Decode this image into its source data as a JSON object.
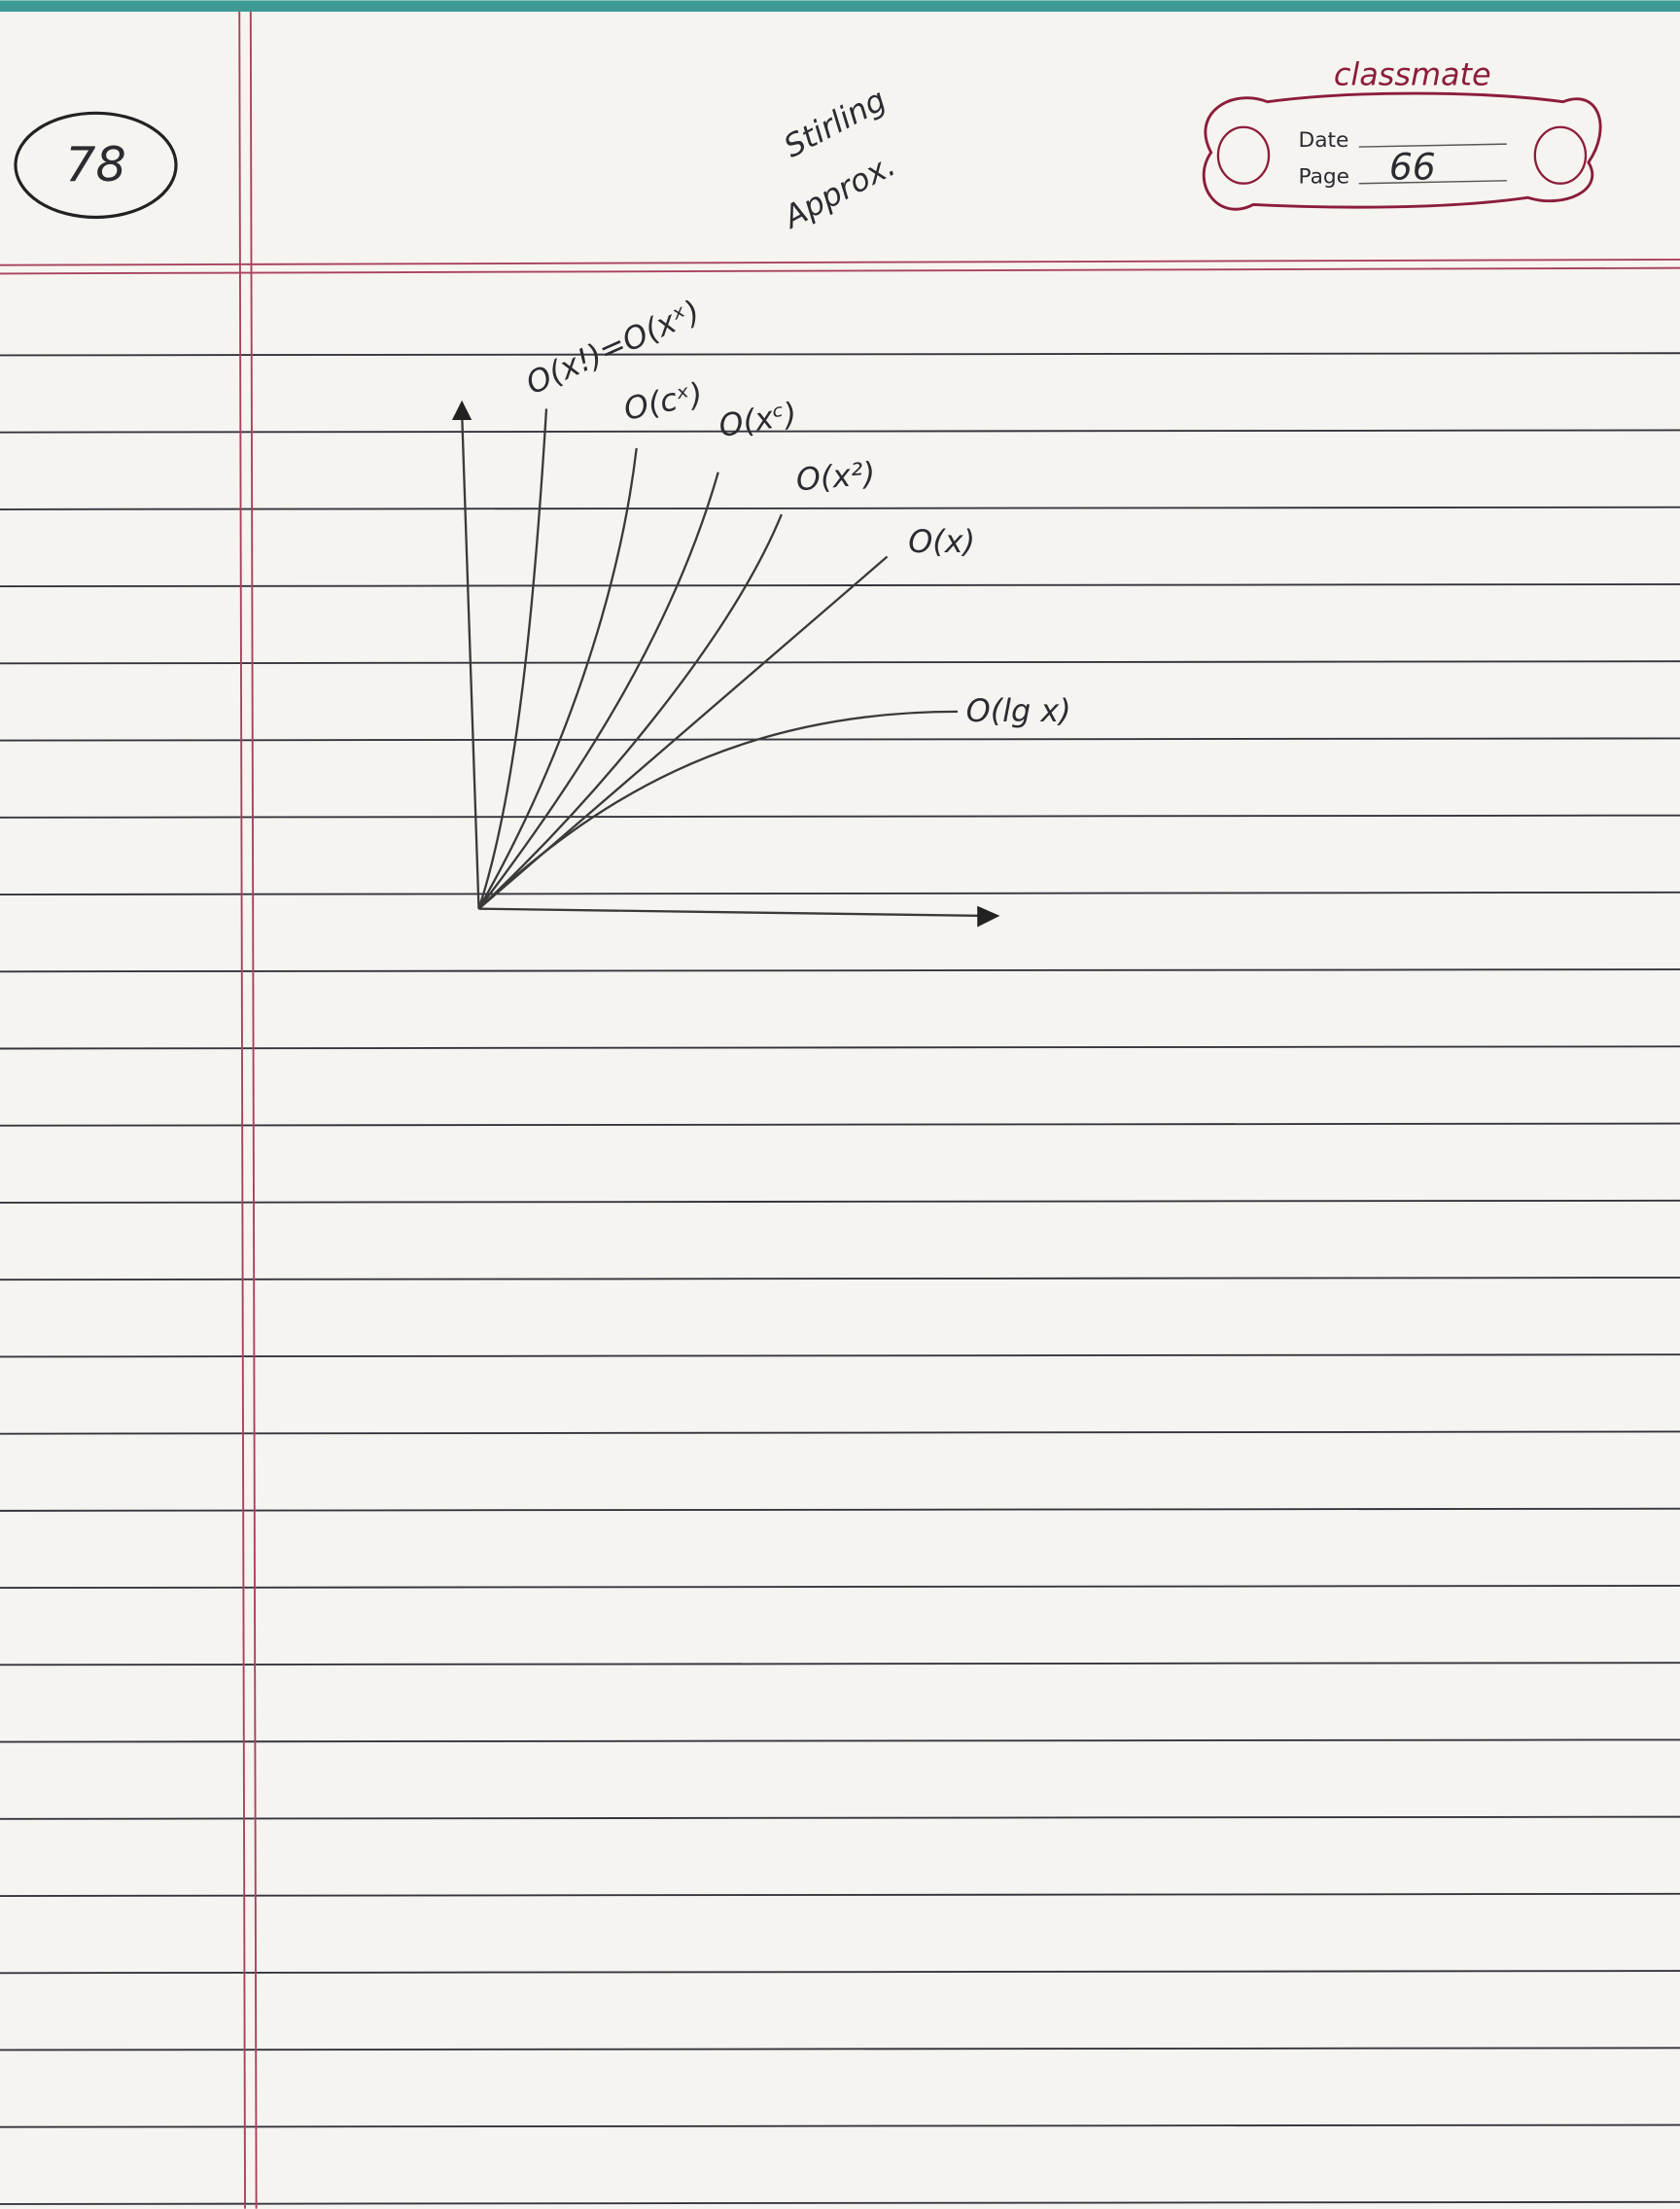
{
  "header": {
    "page_number": "78",
    "brand": "classmate",
    "date_label": "Date",
    "page_label": "Page",
    "page_value": "66"
  },
  "diagram": {
    "note": [
      "Stirling",
      "Approx."
    ],
    "curves": [
      {
        "label": "O(x!)=O(xˣ)"
      },
      {
        "label": "O(cˣ)"
      },
      {
        "label": "O(xᶜ)"
      },
      {
        "label": "O(x²)"
      },
      {
        "label": "O(x)"
      },
      {
        "label": "O(lg x)"
      }
    ]
  }
}
